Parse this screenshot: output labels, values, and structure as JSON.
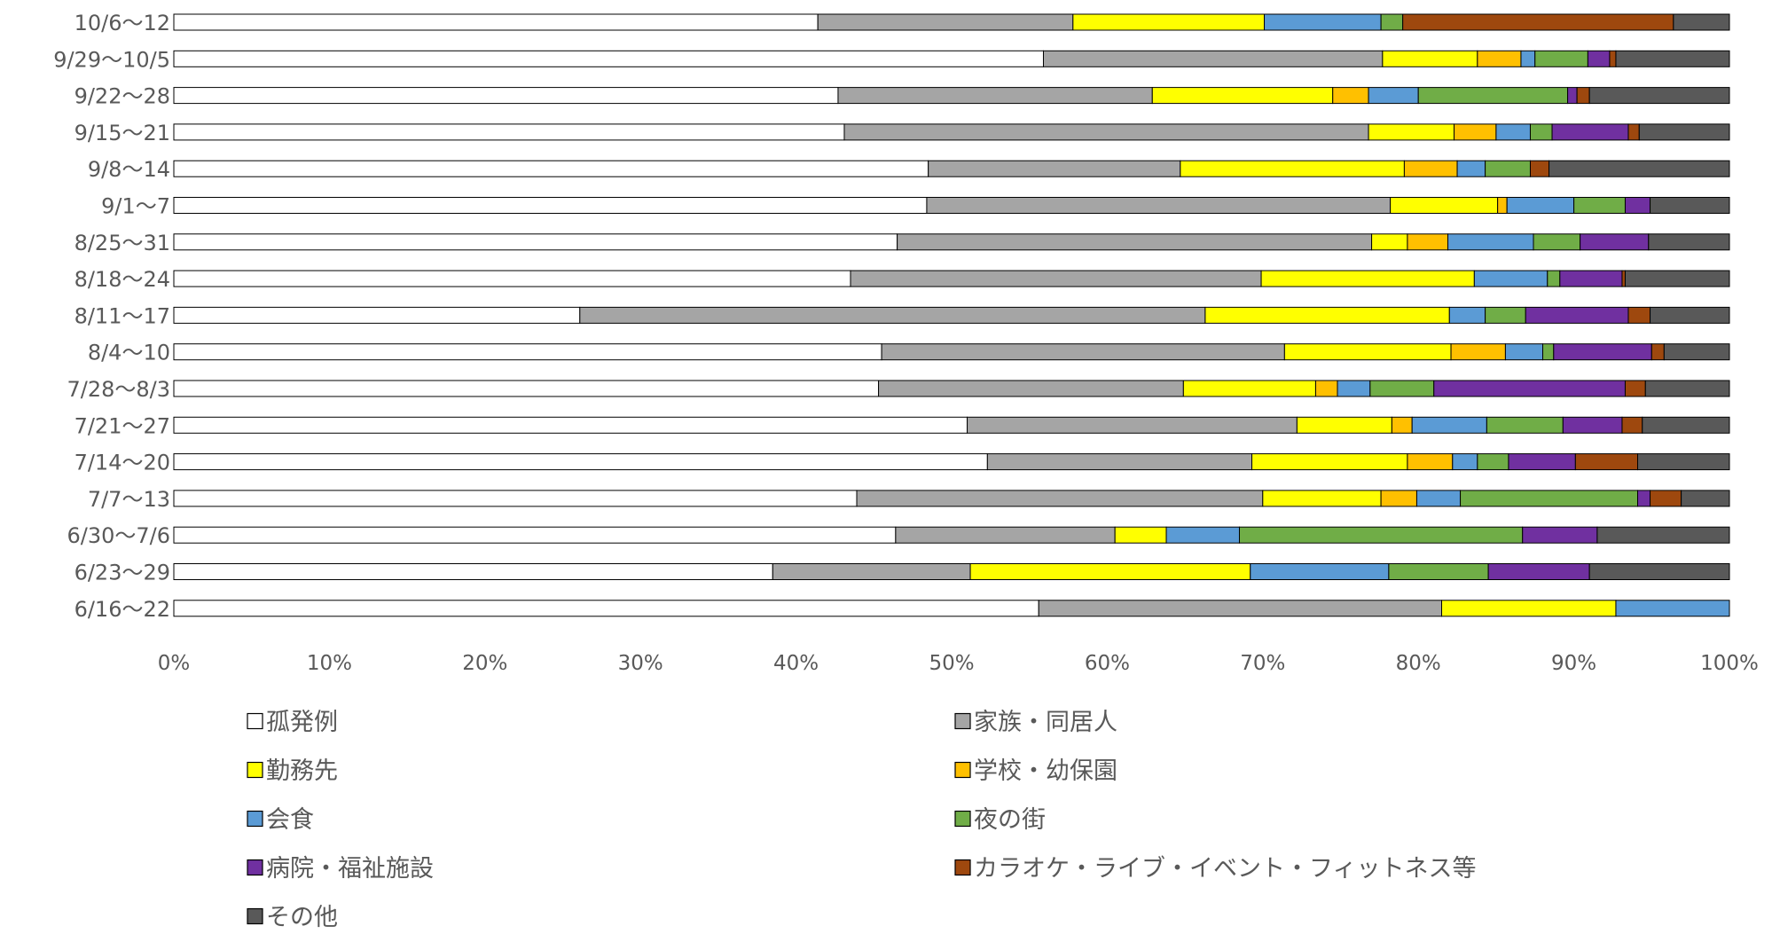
{
  "chart_data": {
    "type": "bar",
    "orientation": "horizontal",
    "stacked": "percent",
    "title": "",
    "xlabel": "",
    "ylabel": "",
    "xlim": [
      0,
      100
    ],
    "x_ticks": [
      "0%",
      "10%",
      "20%",
      "30%",
      "40%",
      "50%",
      "60%",
      "70%",
      "80%",
      "90%",
      "100%"
    ],
    "grid": false,
    "legend_position": "bottom",
    "categories": [
      "10/6〜12",
      "9/29〜10/5",
      "9/22〜28",
      "9/15〜21",
      "9/8〜14",
      "9/1〜7",
      "8/25〜31",
      "8/18〜24",
      "8/11〜17",
      "8/4〜10",
      "7/28〜8/3",
      "7/21〜27",
      "7/14〜20",
      "7/7〜13",
      "6/30〜7/6",
      "6/23〜29",
      "6/16〜22"
    ],
    "series": [
      {
        "name": "孤発例",
        "color": "#ffffff",
        "values": [
          41.4,
          55.9,
          42.7,
          43.1,
          48.5,
          48.4,
          46.5,
          43.5,
          26.1,
          45.5,
          45.3,
          51.0,
          52.3,
          43.9,
          46.4,
          38.5,
          55.6
        ]
      },
      {
        "name": "家族・同居人",
        "color": "#a5a5a5",
        "values": [
          16.4,
          21.8,
          20.2,
          33.7,
          16.2,
          29.8,
          30.5,
          26.4,
          40.2,
          25.9,
          19.6,
          21.2,
          17.0,
          26.1,
          14.1,
          12.7,
          25.9
        ]
      },
      {
        "name": "勤務先",
        "color": "#ffff00",
        "values": [
          12.3,
          6.1,
          11.6,
          5.5,
          14.4,
          6.9,
          2.3,
          13.7,
          15.7,
          10.7,
          8.5,
          6.1,
          10.0,
          7.6,
          3.3,
          18.0,
          11.2
        ]
      },
      {
        "name": "学校・幼保園",
        "color": "#ffc000",
        "values": [
          0.0,
          2.8,
          2.3,
          2.7,
          3.4,
          0.6,
          2.6,
          0.0,
          0.0,
          3.5,
          1.4,
          1.3,
          2.9,
          2.3,
          0.0,
          0.0,
          0.0
        ]
      },
      {
        "name": "会食",
        "color": "#5b9bd5",
        "values": [
          7.5,
          0.9,
          3.2,
          2.2,
          1.8,
          4.3,
          5.5,
          4.7,
          2.3,
          2.4,
          2.1,
          4.8,
          1.6,
          2.8,
          4.7,
          8.9,
          7.3
        ]
      },
      {
        "name": "夜の街",
        "color": "#70ad47",
        "values": [
          1.4,
          3.4,
          9.6,
          1.4,
          2.9,
          3.3,
          3.0,
          0.8,
          2.6,
          0.7,
          4.1,
          4.9,
          2.0,
          11.4,
          18.2,
          6.4,
          0.0
        ]
      },
      {
        "name": "病院・福祉施設",
        "color": "#7030a0",
        "values": [
          0.0,
          1.4,
          0.6,
          4.9,
          0.0,
          1.6,
          4.4,
          4.0,
          6.6,
          6.3,
          12.3,
          3.8,
          4.3,
          0.8,
          4.8,
          6.5,
          0.0
        ]
      },
      {
        "name": "カラオケ・ライブ・イベント・フィットネス等",
        "color": "#9e480e",
        "values": [
          17.4,
          0.4,
          0.8,
          0.7,
          1.2,
          0.0,
          0.0,
          0.2,
          1.4,
          0.8,
          1.3,
          1.3,
          4.0,
          2.0,
          0.0,
          0.0,
          0.0
        ]
      },
      {
        "name": "その他",
        "color": "#595959",
        "values": [
          3.6,
          7.3,
          9.0,
          5.8,
          11.6,
          5.1,
          5.2,
          6.7,
          5.1,
          4.2,
          5.4,
          5.6,
          5.9,
          3.1,
          8.5,
          9.0,
          0.0
        ]
      }
    ]
  }
}
